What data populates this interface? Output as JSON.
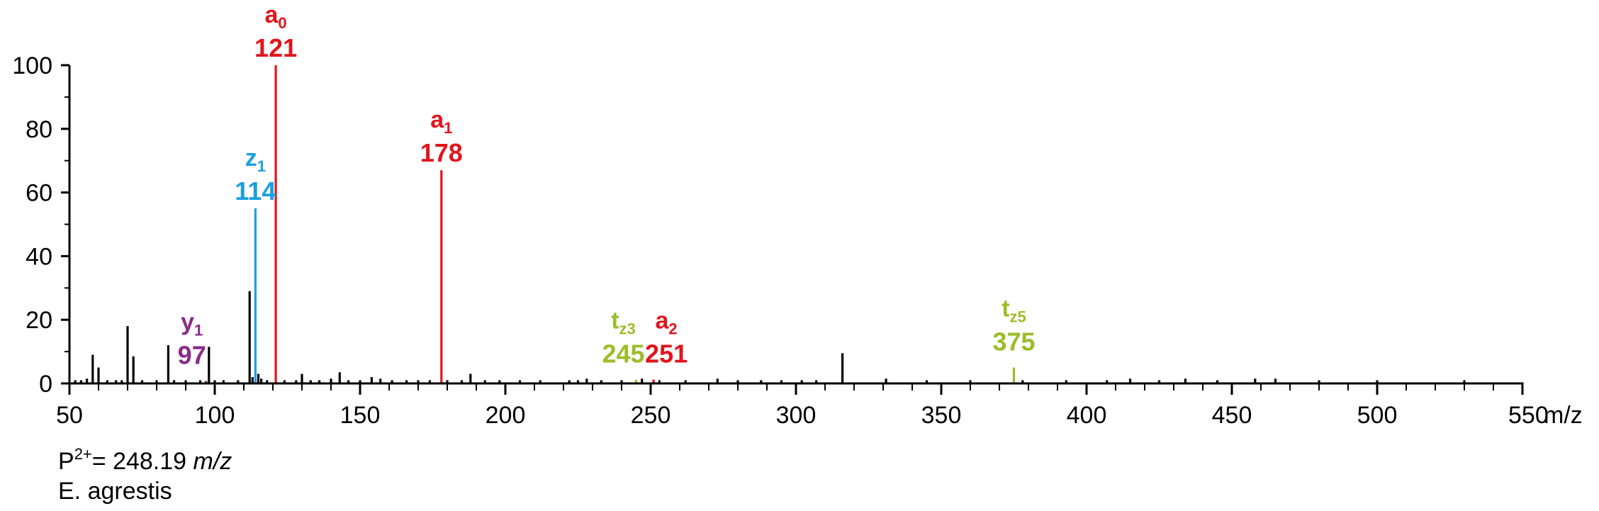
{
  "chart_data": {
    "type": "bar",
    "xlim": [
      50,
      550
    ],
    "ylim": [
      0,
      100
    ],
    "x_ticks": [
      "50",
      "100",
      "150",
      "200",
      "250",
      "300",
      "350",
      "400",
      "450",
      "500",
      "550"
    ],
    "y_ticks": [
      "0",
      "20",
      "40",
      "60",
      "80",
      "100"
    ],
    "x_unit": "m/z",
    "grid": false,
    "peaks": [
      {
        "x": 52,
        "y": 1
      },
      {
        "x": 54,
        "y": 1
      },
      {
        "x": 56,
        "y": 1.5
      },
      {
        "x": 58,
        "y": 9
      },
      {
        "x": 60,
        "y": 5
      },
      {
        "x": 63,
        "y": 1
      },
      {
        "x": 66,
        "y": 1
      },
      {
        "x": 68,
        "y": 1
      },
      {
        "x": 70,
        "y": 18
      },
      {
        "x": 72,
        "y": 8.5
      },
      {
        "x": 75,
        "y": 1
      },
      {
        "x": 80,
        "y": 1
      },
      {
        "x": 84,
        "y": 12
      },
      {
        "x": 86,
        "y": 1
      },
      {
        "x": 90,
        "y": 1
      },
      {
        "x": 95,
        "y": 1
      },
      {
        "x": 98,
        "y": 11.5
      },
      {
        "x": 100,
        "y": 1
      },
      {
        "x": 103,
        "y": 1
      },
      {
        "x": 108,
        "y": 1
      },
      {
        "x": 112,
        "y": 29
      },
      {
        "x": 113,
        "y": 2
      },
      {
        "x": 115,
        "y": 3
      },
      {
        "x": 116,
        "y": 1.5
      },
      {
        "x": 118,
        "y": 1
      },
      {
        "x": 124,
        "y": 1
      },
      {
        "x": 128,
        "y": 1
      },
      {
        "x": 130,
        "y": 3
      },
      {
        "x": 133,
        "y": 1
      },
      {
        "x": 136,
        "y": 1
      },
      {
        "x": 140,
        "y": 1.5
      },
      {
        "x": 143,
        "y": 3.5
      },
      {
        "x": 146,
        "y": 1
      },
      {
        "x": 150,
        "y": 1
      },
      {
        "x": 154,
        "y": 2
      },
      {
        "x": 157,
        "y": 1.5
      },
      {
        "x": 161,
        "y": 1
      },
      {
        "x": 166,
        "y": 1
      },
      {
        "x": 170,
        "y": 1
      },
      {
        "x": 174,
        "y": 1
      },
      {
        "x": 180,
        "y": 1
      },
      {
        "x": 185,
        "y": 1
      },
      {
        "x": 188,
        "y": 3
      },
      {
        "x": 193,
        "y": 1
      },
      {
        "x": 198,
        "y": 1
      },
      {
        "x": 205,
        "y": 1
      },
      {
        "x": 212,
        "y": 1
      },
      {
        "x": 222,
        "y": 1
      },
      {
        "x": 225,
        "y": 1
      },
      {
        "x": 228,
        "y": 1.5
      },
      {
        "x": 233,
        "y": 1
      },
      {
        "x": 240,
        "y": 1
      },
      {
        "x": 247,
        "y": 1.5
      },
      {
        "x": 253,
        "y": 1
      },
      {
        "x": 262,
        "y": 1
      },
      {
        "x": 273,
        "y": 1.5
      },
      {
        "x": 280,
        "y": 1
      },
      {
        "x": 288,
        "y": 1
      },
      {
        "x": 295,
        "y": 1
      },
      {
        "x": 302,
        "y": 1
      },
      {
        "x": 307,
        "y": 1
      },
      {
        "x": 316,
        "y": 9.5
      },
      {
        "x": 331,
        "y": 1.5
      },
      {
        "x": 345,
        "y": 1
      },
      {
        "x": 360,
        "y": 1
      },
      {
        "x": 378,
        "y": 1
      },
      {
        "x": 393,
        "y": 1
      },
      {
        "x": 407,
        "y": 1
      },
      {
        "x": 415,
        "y": 1.5
      },
      {
        "x": 425,
        "y": 1
      },
      {
        "x": 434,
        "y": 1.5
      },
      {
        "x": 445,
        "y": 1
      },
      {
        "x": 458,
        "y": 1.5
      },
      {
        "x": 465,
        "y": 1.5
      },
      {
        "x": 480,
        "y": 1
      },
      {
        "x": 500,
        "y": 1
      },
      {
        "x": 530,
        "y": 1
      }
    ],
    "labeled_peaks": [
      {
        "ion": "a",
        "sub": "0",
        "mz": "121",
        "x": 121,
        "y": 100,
        "color": "#e2141c"
      },
      {
        "ion": "a",
        "sub": "1",
        "mz": "178",
        "x": 178,
        "y": 67,
        "color": "#e2141c"
      },
      {
        "ion": "z",
        "sub": "1",
        "mz": "114",
        "x": 114,
        "y": 55,
        "color": "#1ba0e0"
      },
      {
        "ion": "y",
        "sub": "1",
        "mz": "97",
        "x": 97,
        "y": 0.8,
        "color": "#8b2a87"
      },
      {
        "ion": "t",
        "sub": "z3",
        "mz": "245",
        "x": 245,
        "y": 1.2,
        "color": "#9cbd2a"
      },
      {
        "ion": "a",
        "sub": "2",
        "mz": "251",
        "x": 251,
        "y": 1.2,
        "color": "#e2141c"
      },
      {
        "ion": "t",
        "sub": "z5",
        "mz": "375",
        "x": 375,
        "y": 5,
        "color": "#9cbd2a"
      }
    ]
  },
  "notes": {
    "precursor_prefix": "P",
    "precursor_charge": "2+",
    "precursor_value": "= 248.19 ",
    "precursor_unit": "m/z",
    "species": "E. agrestis"
  }
}
